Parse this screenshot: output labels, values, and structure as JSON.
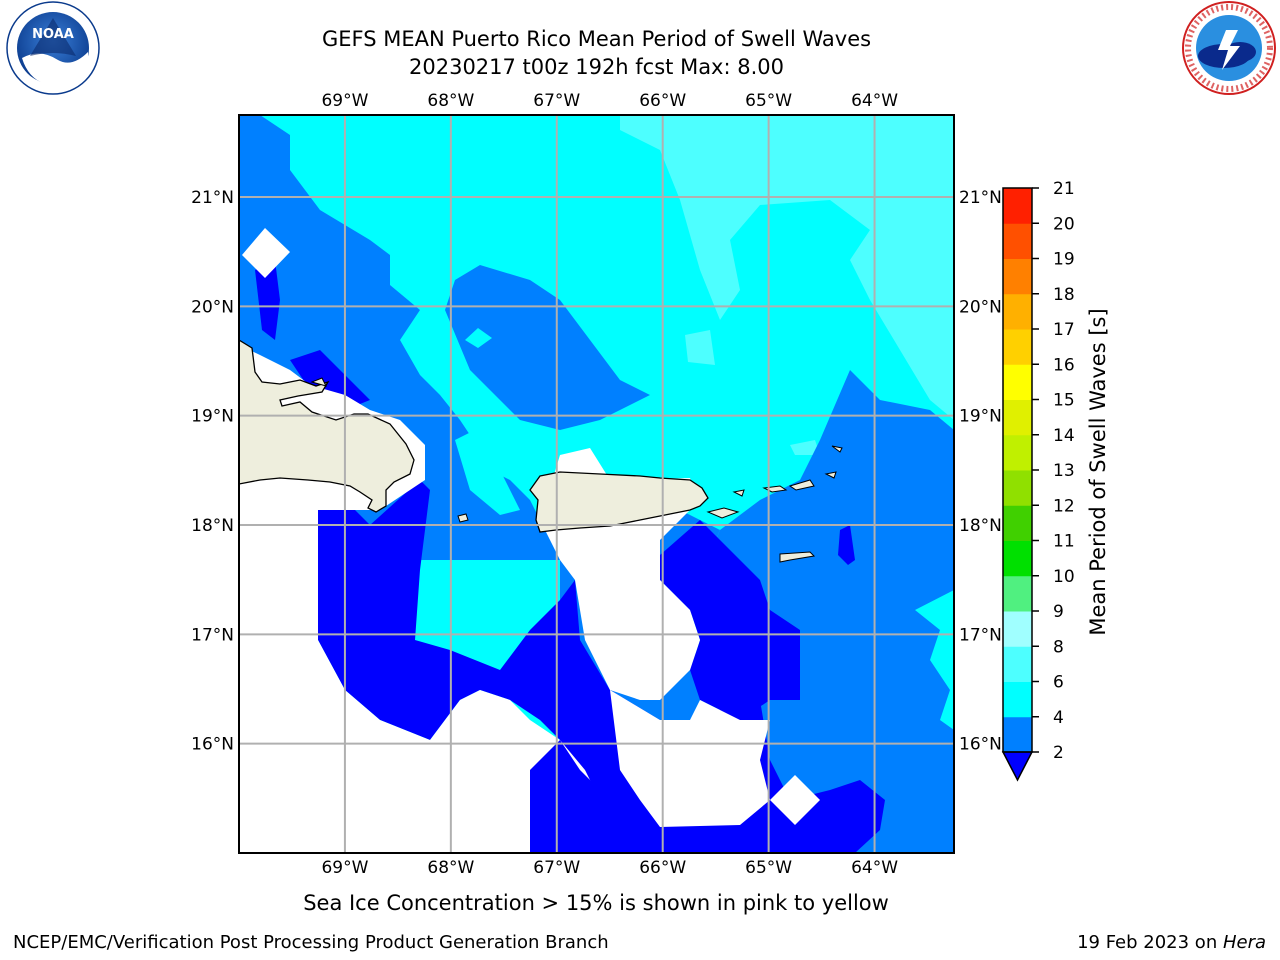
{
  "title": {
    "line1": "GEFS MEAN Puerto Rico Mean Period of Swell Waves",
    "line2": "20230217 t00z 192h fcst   Max: 8.00"
  },
  "map": {
    "lon_labels": [
      "69°W",
      "68°W",
      "67°W",
      "66°W",
      "65°W",
      "64°W"
    ],
    "lat_labels": [
      "21°N",
      "20°N",
      "19°N",
      "18°N",
      "17°N",
      "16°N"
    ],
    "lon_range": [
      -70,
      -63.25
    ],
    "lat_range": [
      15,
      21.75
    ],
    "colors": {
      "land": "#eeeedd",
      "ocean_2_4": "#0080ff",
      "ocean_below_2": "#0000ff",
      "ocean_4_6": "#00ffff",
      "ocean_6_8": "#4dffff",
      "ocean_8_9": "#a0ffff",
      "grid": "#b0b0b0"
    }
  },
  "colorbar": {
    "label": "Mean Period of Swell Waves [s]",
    "levels": [
      "2",
      "4",
      "6",
      "8",
      "9",
      "10",
      "11",
      "12",
      "13",
      "14",
      "15",
      "16",
      "17",
      "18",
      "19",
      "20",
      "21"
    ],
    "colors": [
      "#0080ff",
      "#00ffff",
      "#4dffff",
      "#a0ffff",
      "#50f080",
      "#00e000",
      "#40d000",
      "#90e000",
      "#c0f000",
      "#e0f000",
      "#ffff00",
      "#ffd000",
      "#ffb000",
      "#ff8000",
      "#ff5000",
      "#ff2000"
    ],
    "extend_color": "#0000ff"
  },
  "note": "Sea Ice Concentration > 15% is shown in pink to yellow",
  "footer": {
    "left": "NCEP/EMC/Verification Post Processing Product Generation Branch",
    "right_prefix": "19 Feb 2023 on ",
    "right_host": "Hera"
  },
  "logos": {
    "noaa_text": "NOAA",
    "nws_text": "NATIONAL WEATHER SERVICE"
  }
}
